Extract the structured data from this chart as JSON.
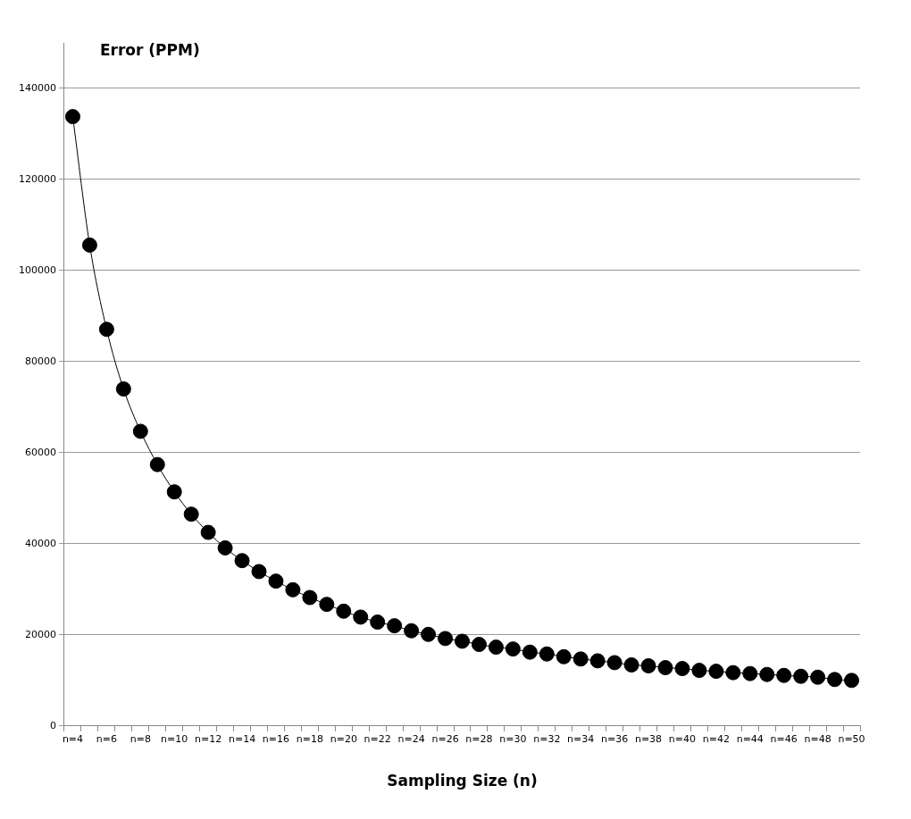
{
  "chart_data": {
    "type": "line",
    "ylabel": "Error (PPM)",
    "xlabel": "Sampling Size (n)",
    "categories": [
      "n=4",
      null,
      "n=6",
      null,
      "n=8",
      null,
      "n=10",
      null,
      "n=12",
      null,
      "n=14",
      null,
      "n=16",
      null,
      "n=18",
      null,
      "n=20",
      null,
      "n=22",
      null,
      "n=24",
      null,
      "n=26",
      null,
      "n=28",
      null,
      "n=30",
      null,
      "n=32",
      null,
      "n=34",
      null,
      "n=36",
      null,
      "n=38",
      null,
      "n=40",
      null,
      "n=42",
      null,
      "n=44",
      null,
      "n=46",
      null,
      "n=48",
      null,
      "n=50"
    ],
    "series": [
      {
        "color": "#000000",
        "values": [
          133800,
          105600,
          87100,
          74000,
          64700,
          57400,
          51400,
          46500,
          42500,
          39100,
          36300,
          33900,
          31800,
          29900,
          28200,
          26700,
          25200,
          23900,
          22800,
          22000,
          20900,
          20100,
          19200,
          18600,
          17900,
          17300,
          16900,
          16200,
          15800,
          15200,
          14700,
          14300,
          13900,
          13400,
          13200,
          12800,
          12600,
          12200,
          12000,
          11700,
          11500,
          11300,
          11100,
          10900,
          10700,
          10200,
          10000
        ]
      }
    ],
    "ylim": [
      0,
      150000
    ],
    "yticks": [
      0,
      20000,
      40000,
      60000,
      80000,
      100000,
      120000,
      140000
    ],
    "grid": "y",
    "legend": false,
    "marker": "circle",
    "line_style": "solid"
  }
}
